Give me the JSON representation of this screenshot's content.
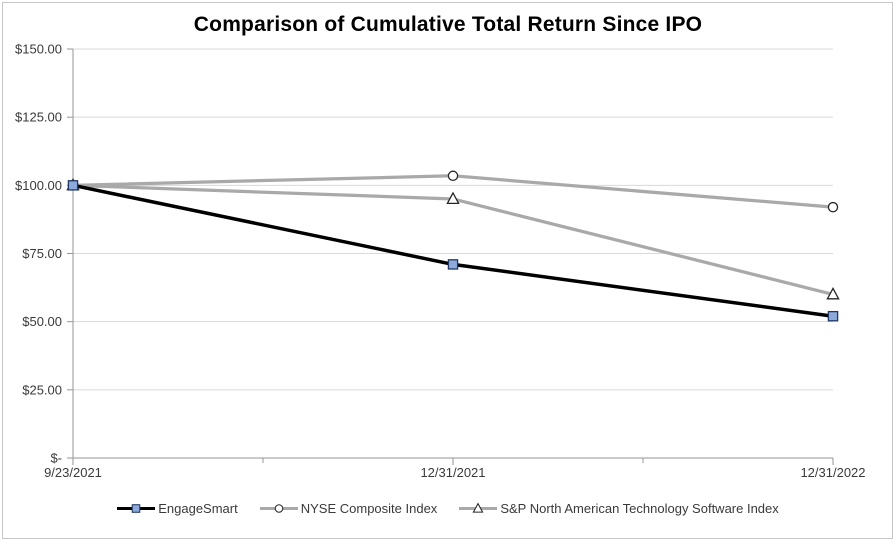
{
  "chart_data": {
    "type": "line",
    "title": "Comparison of Cumulative Total Return Since IPO",
    "x": [
      "9/23/2021",
      "12/31/2021",
      "12/31/2022"
    ],
    "series": [
      {
        "name": "EngageSmart",
        "values": [
          100,
          71,
          52
        ],
        "color": "#000000",
        "line_width": 3.5,
        "marker": "square",
        "marker_fill": "#8EA9DB",
        "marker_stroke": "#203864"
      },
      {
        "name": "NYSE Composite Index",
        "values": [
          100,
          103.5,
          92
        ],
        "color": "#A9A9A9",
        "line_width": 3.25,
        "marker": "circle",
        "marker_fill": "#FFFFFF",
        "marker_stroke": "#262626"
      },
      {
        "name": "S&P North American Technology Software Index",
        "values": [
          100,
          95,
          60
        ],
        "color": "#A9A9A9",
        "line_width": 3.25,
        "marker": "triangle",
        "marker_fill": "#FFFFFF",
        "marker_stroke": "#262626"
      }
    ],
    "ylim": [
      0,
      150
    ],
    "ytick_step": 25,
    "ytick_labels": [
      "$-",
      "$25.00",
      "$50.00",
      "$75.00",
      "$100.00",
      "$125.00",
      "$150.00"
    ],
    "grid": true,
    "legend_position": "bottom"
  },
  "colors": {
    "background": "#FFFFFF",
    "border": "#C6C6C6",
    "gridline": "#D9D9D9",
    "axis": "#969696",
    "text": "#3A3A3A",
    "title": "#000000"
  }
}
